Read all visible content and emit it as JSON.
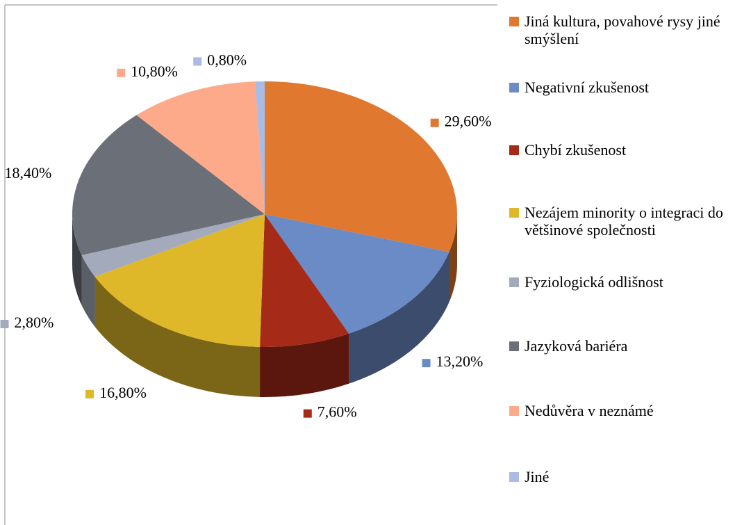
{
  "chart_data": {
    "type": "pie",
    "categories": [
      "Jiná kultura, povahové rysy jiné smýšlení",
      "Negativní zkušenost",
      "Chybí zkušenost",
      "Nezájem minority o integraci do většinové společnosti",
      "Fyziologická odlišnost",
      "Jazyková bariéra",
      "Nedůvěra v neznámé",
      "Jiné"
    ],
    "values": [
      29.6,
      13.2,
      7.6,
      16.8,
      2.8,
      18.4,
      10.8,
      0.8
    ],
    "value_labels": [
      "29,60%",
      "13,20%",
      "7,60%",
      "16,80%",
      "2,80%",
      "18,40%",
      "10,80%",
      "0,80%"
    ],
    "colors": [
      "#e07830",
      "#6b8bc6",
      "#a52a18",
      "#dfb82a",
      "#a3aabb",
      "#6b6f78",
      "#fdaa8a",
      "#a8bce6"
    ],
    "legend": "right"
  }
}
